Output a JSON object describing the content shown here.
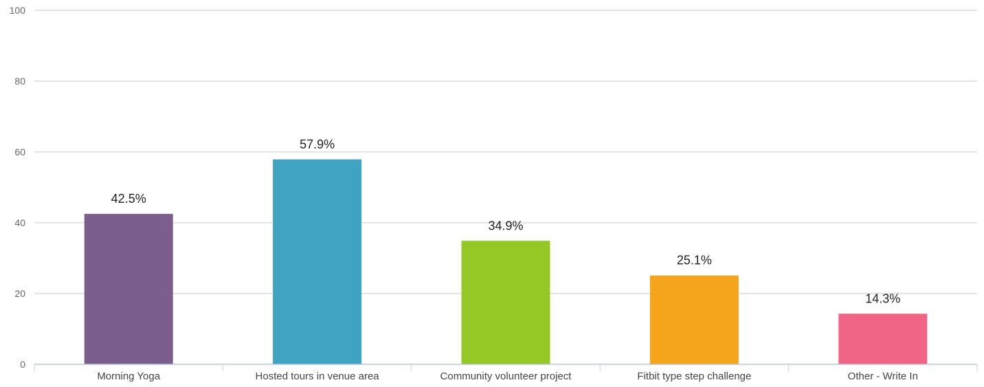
{
  "chart_data": {
    "type": "bar",
    "title": "",
    "xlabel": "",
    "ylabel": "",
    "ylim": [
      0,
      100
    ],
    "yticks": [
      0,
      20,
      40,
      60,
      80,
      100
    ],
    "grid": true,
    "legend": "none",
    "categories": [
      "Morning Yoga",
      "Hosted tours in venue area",
      "Community volunteer project",
      "Fitbit type step challenge",
      "Other - Write In"
    ],
    "values": [
      42.5,
      57.9,
      34.9,
      25.1,
      14.3
    ],
    "data_labels": [
      "42.5%",
      "57.9%",
      "34.9%",
      "25.1%",
      "14.3%"
    ],
    "colors": [
      "#7b5e8e",
      "#40a3c2",
      "#95c824",
      "#f4a51c",
      "#f06585"
    ]
  }
}
